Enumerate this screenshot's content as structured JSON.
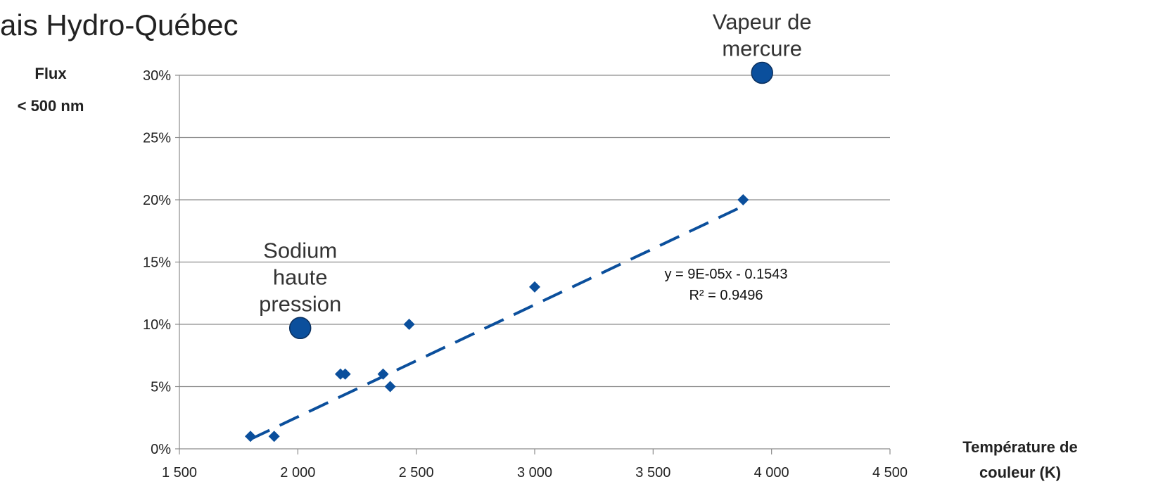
{
  "title": "ais Hydro-Québec",
  "chart_data": {
    "type": "scatter",
    "title": "ais Hydro-Québec",
    "ylabel_lines": [
      "Flux",
      "< 500 nm"
    ],
    "xlabel_lines": [
      "Température de",
      "couleur (K)"
    ],
    "xlim": [
      1500,
      4500
    ],
    "ylim": [
      0,
      0.3
    ],
    "x_ticks": [
      1500,
      2000,
      2500,
      3000,
      3500,
      4000,
      4500
    ],
    "x_tick_labels": [
      "1 500",
      "2 000",
      "2 500",
      "3 000",
      "3 500",
      "4 000",
      "4 500"
    ],
    "y_ticks": [
      0,
      0.05,
      0.1,
      0.15,
      0.2,
      0.25,
      0.3
    ],
    "y_tick_labels": [
      "0%",
      "5%",
      "10%",
      "15%",
      "20%",
      "25%",
      "30%"
    ],
    "grid": "horizontal",
    "series": [
      {
        "marker": "diamond",
        "color": "#0b4f9c",
        "points": [
          {
            "x": 1800,
            "y": 0.01
          },
          {
            "x": 1900,
            "y": 0.01
          },
          {
            "x": 2180,
            "y": 0.06
          },
          {
            "x": 2200,
            "y": 0.06
          },
          {
            "x": 2360,
            "y": 0.06
          },
          {
            "x": 2390,
            "y": 0.05
          },
          {
            "x": 2470,
            "y": 0.1
          },
          {
            "x": 3000,
            "y": 0.13
          },
          {
            "x": 3880,
            "y": 0.2
          }
        ]
      },
      {
        "marker": "circle",
        "color": "#0b4f9c",
        "points": [
          {
            "x": 2010,
            "y": 0.097
          },
          {
            "x": 3960,
            "y": 0.302
          }
        ]
      }
    ],
    "trendline": {
      "style": "dashed",
      "color": "#0b4f9c",
      "x_range": [
        1800,
        3870
      ],
      "slope": 9e-05,
      "intercept": -0.1543,
      "equation_text": "y = 9E-05x - 0.1543",
      "r2_text": "R² = 0.9496"
    },
    "annotations": [
      {
        "lines": [
          "Sodium",
          "haute",
          "pression"
        ],
        "x": 2010,
        "y": 0.097
      },
      {
        "lines": [
          "Vapeur de",
          "mercure"
        ],
        "x": 3960,
        "y": 0.302
      }
    ],
    "colors": {
      "accent": "#0b4f9c",
      "grid": "#8c8c8c",
      "text": "#222222"
    }
  }
}
